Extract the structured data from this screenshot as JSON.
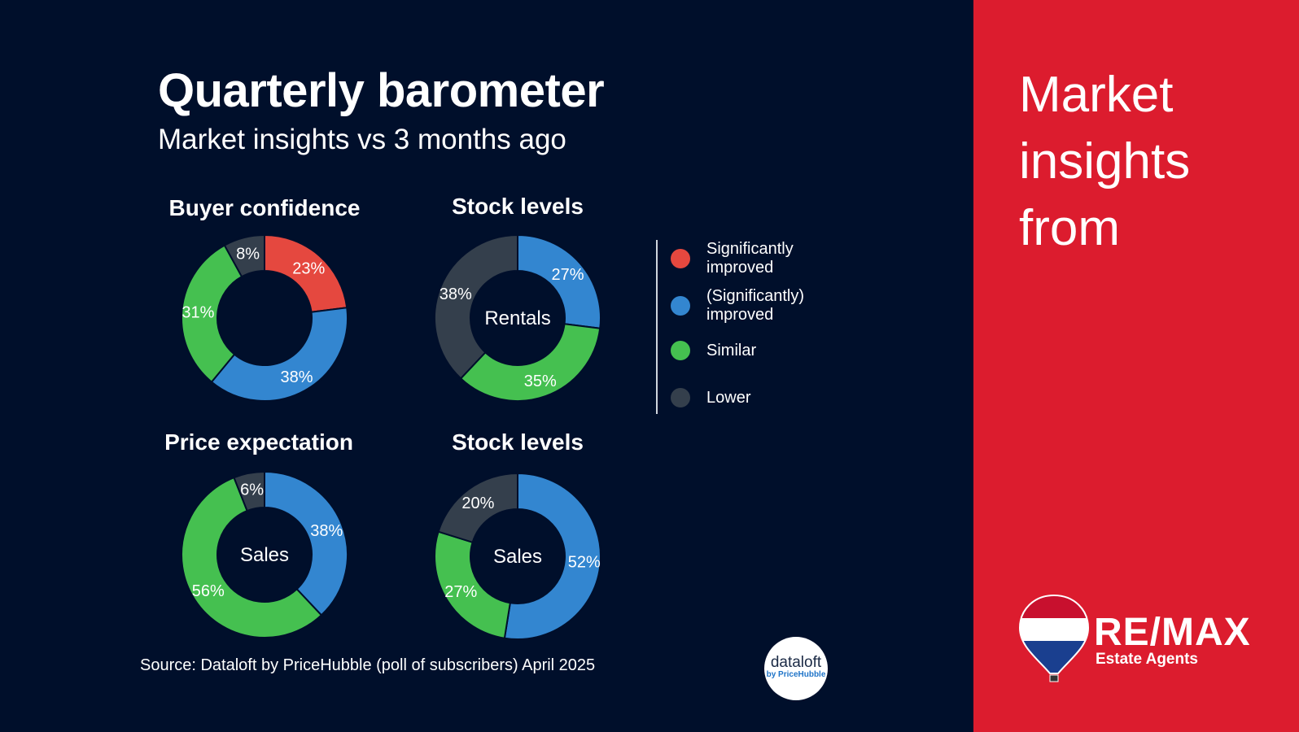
{
  "header": {
    "title": "Quarterly barometer",
    "subtitle": "Market insights vs 3 months ago"
  },
  "colors": {
    "sig_improved": "#e5483f",
    "improved": "#3386d0",
    "similar": "#45c050",
    "lower": "#343f4c",
    "background": "#000f2b",
    "panel": "#dc1c2e"
  },
  "legend": [
    {
      "label": "Significantly improved",
      "key": "sig_improved"
    },
    {
      "label": "(Significantly) improved",
      "key": "improved"
    },
    {
      "label": "Similar",
      "key": "similar"
    },
    {
      "label": "Lower",
      "key": "lower"
    }
  ],
  "chart_data": [
    {
      "type": "pie",
      "title": "Buyer confidence",
      "center_label": "",
      "slices": [
        {
          "key": "sig_improved",
          "value": 23
        },
        {
          "key": "improved",
          "value": 38
        },
        {
          "key": "similar",
          "value": 31
        },
        {
          "key": "lower",
          "value": 8
        }
      ]
    },
    {
      "type": "pie",
      "title": "Stock levels",
      "center_label": "Rentals",
      "slices": [
        {
          "key": "improved",
          "value": 27
        },
        {
          "key": "similar",
          "value": 35
        },
        {
          "key": "lower",
          "value": 38
        }
      ]
    },
    {
      "type": "pie",
      "title": "Price expectation",
      "center_label": "Sales",
      "slices": [
        {
          "key": "improved",
          "value": 38
        },
        {
          "key": "similar",
          "value": 56
        },
        {
          "key": "lower",
          "value": 6
        }
      ]
    },
    {
      "type": "pie",
      "title": "Stock levels",
      "center_label": "Sales",
      "slices": [
        {
          "key": "improved",
          "value": 52
        },
        {
          "key": "similar",
          "value": 27
        },
        {
          "key": "lower",
          "value": 20
        }
      ]
    }
  ],
  "source": "Source: Dataloft by PriceHubble (poll of subscribers) April 2025",
  "dataloft": {
    "name": "dataloft",
    "sub": "by PriceHubble"
  },
  "panel": {
    "title": "Market insights from",
    "brand": "RE/MAX",
    "brand_sub": "Estate Agents"
  }
}
